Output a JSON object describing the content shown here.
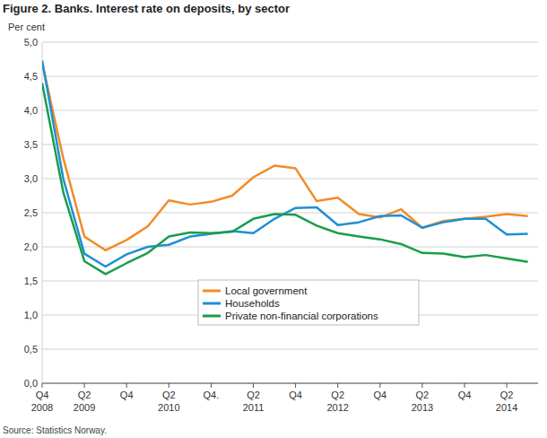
{
  "chart_data": {
    "type": "line",
    "title": "Figure 2. Banks. Interest rate on deposits, by sector",
    "ylabel": "Per cent",
    "source": "Source: Statistics Norway.",
    "categories": [
      "Q4\n2008",
      null,
      "Q2\n2009",
      null,
      "Q4",
      null,
      "Q2\n2010",
      null,
      "Q4.",
      null,
      "Q2\n2011",
      null,
      "Q4",
      null,
      "Q2\n2012",
      null,
      "Q4",
      null,
      "Q2\n2013",
      null,
      "Q4",
      null,
      "Q2\n2014",
      null
    ],
    "series": [
      {
        "name": "Local government",
        "color": "#f28b26",
        "values": [
          4.7,
          3.3,
          2.15,
          1.95,
          2.1,
          2.3,
          2.68,
          2.62,
          2.66,
          2.75,
          3.02,
          3.19,
          3.15,
          2.67,
          2.72,
          2.48,
          2.43,
          2.55,
          2.28,
          2.38,
          2.41,
          2.44,
          2.48,
          2.45
        ]
      },
      {
        "name": "Households",
        "color": "#1f8fd6",
        "values": [
          4.73,
          3.0,
          1.9,
          1.71,
          1.89,
          2.0,
          2.03,
          2.15,
          2.19,
          2.23,
          2.2,
          2.41,
          2.57,
          2.58,
          2.32,
          2.36,
          2.45,
          2.46,
          2.28,
          2.36,
          2.41,
          2.41,
          2.18,
          2.19
        ]
      },
      {
        "name": "Private non-financial corporations",
        "color": "#1a9d49",
        "values": [
          4.4,
          2.8,
          1.79,
          1.6,
          1.76,
          1.91,
          2.15,
          2.21,
          2.2,
          2.22,
          2.41,
          2.48,
          2.47,
          2.31,
          2.2,
          2.15,
          2.11,
          2.04,
          1.91,
          1.9,
          1.85,
          1.88,
          1.83,
          1.78
        ]
      }
    ],
    "ylim": [
      0,
      5
    ],
    "yticks": [
      {
        "value": 0,
        "label": "0,0"
      },
      {
        "value": 0.5,
        "label": "0,5"
      },
      {
        "value": 1,
        "label": "1,0"
      },
      {
        "value": 1.5,
        "label": "1,5"
      },
      {
        "value": 2,
        "label": "2,0"
      },
      {
        "value": 2.5,
        "label": "2,5"
      },
      {
        "value": 3,
        "label": "3,0"
      },
      {
        "value": 3.5,
        "label": "3,5"
      },
      {
        "value": 4,
        "label": "4,0"
      },
      {
        "value": 4.5,
        "label": "4,5"
      },
      {
        "value": 5,
        "label": "5,0"
      }
    ],
    "grid": true,
    "legend": "center"
  }
}
